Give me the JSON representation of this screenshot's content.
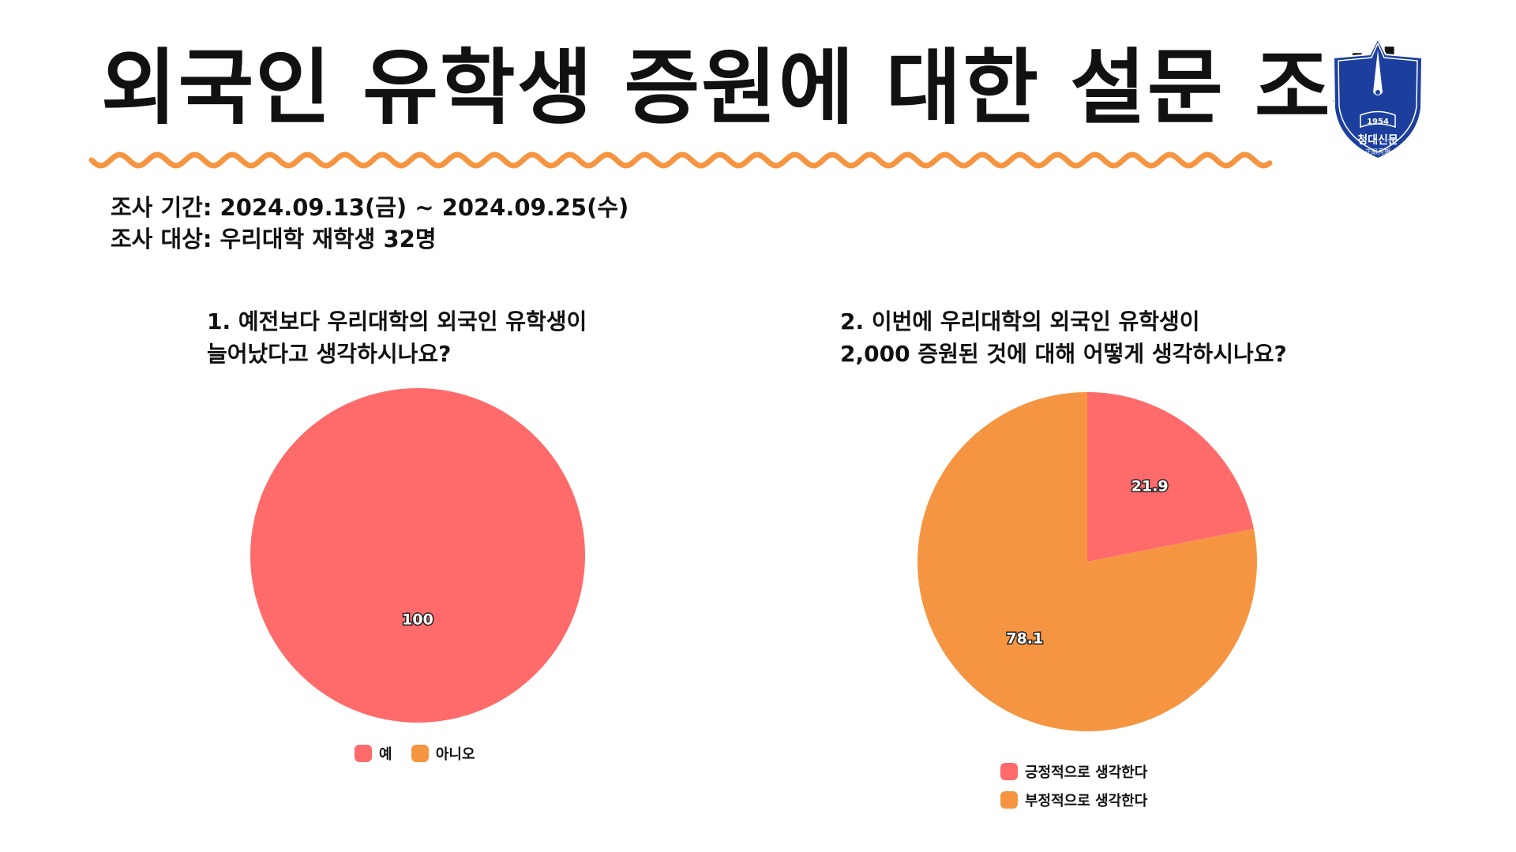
{
  "title": "외국인 유학생 증원에 대한 설문 조사",
  "survey_info": {
    "period": "조사 기간: 2024.09.13(금) ~ 2024.09.25(수)",
    "target": "조사 대상: 우리대학 재학생 32명"
  },
  "logo": {
    "year": "1954",
    "name": "청대신문",
    "motto": "正眼秀想"
  },
  "colors": {
    "red": "#FF6B6B",
    "orange": "#F69541",
    "wave": "#F69541",
    "logo_blue": "#1C3F9E"
  },
  "chart_data": [
    {
      "type": "pie",
      "title_lines": [
        "1. 예전보다 우리대학의 외국인 유학생이",
        "늘어났다고 생각하시나요?"
      ],
      "categories": [
        "예",
        "아니오"
      ],
      "values": [
        100,
        0
      ],
      "labels": [
        "100",
        ""
      ],
      "legend_position": "bottom"
    },
    {
      "type": "pie",
      "title_lines": [
        "2. 이번에 우리대학의 외국인 유학생이",
        "2,000 증원된 것에 대해 어떻게 생각하시나요?"
      ],
      "categories": [
        "긍정적으로 생각한다",
        "부정적으로 생각한다"
      ],
      "values": [
        21.9,
        78.1
      ],
      "labels": [
        "21.9",
        "78.1"
      ],
      "legend_position": "bottom"
    }
  ]
}
